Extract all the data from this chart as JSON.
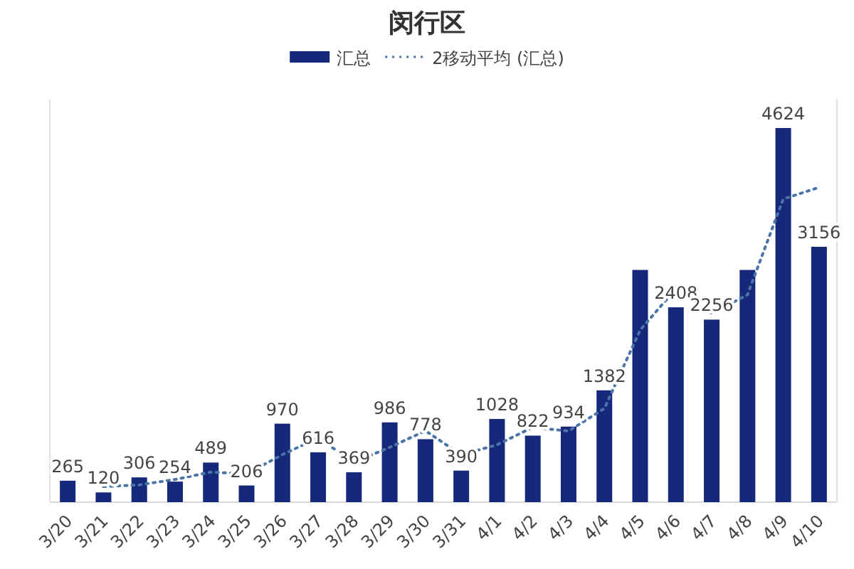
{
  "chart_data": {
    "type": "bar",
    "title": "闵行区",
    "categories": [
      "3/20",
      "3/21",
      "3/22",
      "3/23",
      "3/24",
      "3/25",
      "3/26",
      "3/27",
      "3/28",
      "3/29",
      "3/30",
      "3/31",
      "4/1",
      "4/2",
      "4/3",
      "4/4",
      "4/5",
      "4/6",
      "4/7",
      "4/8",
      "4/9",
      "4/10"
    ],
    "series": [
      {
        "name": "汇总",
        "color": "#15287a",
        "values": [
          265,
          120,
          306,
          254,
          489,
          206,
          970,
          616,
          369,
          986,
          778,
          390,
          1028,
          822,
          934,
          1382,
          2870,
          2408,
          2256,
          2870,
          4624,
          3156
        ],
        "value_labels": [
          "265",
          "120",
          "306",
          "254",
          "489",
          "206",
          "970",
          "616",
          "369",
          "986",
          "778",
          "390",
          "1028",
          "822",
          "934",
          "1382",
          null,
          "2408",
          "2256",
          null,
          "4624",
          "3156"
        ]
      },
      {
        "name": "2移动平均 (汇总)",
        "type": "line",
        "color": "#4a74a8",
        "line_style": "dotted",
        "values": [
          null,
          192.5,
          213,
          280,
          371.5,
          347.5,
          588,
          793,
          492.5,
          677.5,
          882,
          584,
          709,
          925,
          878,
          1158,
          2126,
          2639,
          2332,
          2563,
          3747,
          3890
        ]
      }
    ],
    "legend": "top",
    "grid": false
  }
}
